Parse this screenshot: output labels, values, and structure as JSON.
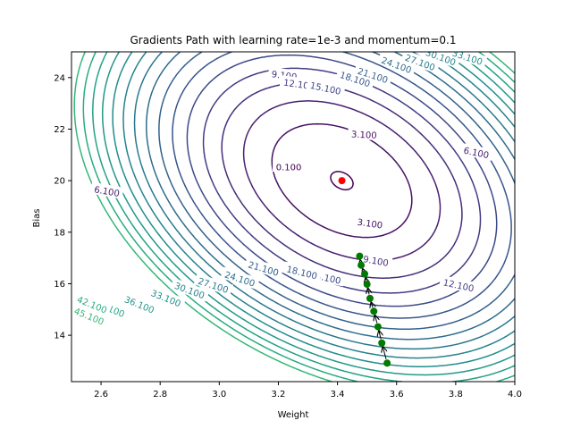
{
  "chart_data": {
    "type": "contour",
    "title": "Gradients Path with learning rate=1e-3 and momentum=0.1",
    "xlabel": "Weight",
    "ylabel": "Bias",
    "xlim": [
      2.5,
      4.0
    ],
    "ylim": [
      12.2,
      25.0
    ],
    "xticks": [
      2.6,
      2.8,
      3.0,
      3.2,
      3.4,
      3.6,
      3.8,
      4.0
    ],
    "yticks": [
      14,
      16,
      18,
      20,
      22,
      24
    ],
    "xtick_labels": [
      "2.6",
      "2.8",
      "3.0",
      "3.2",
      "3.4",
      "3.6",
      "3.8",
      "4.0"
    ],
    "ytick_labels": [
      "14",
      "16",
      "18",
      "20",
      "22",
      "24"
    ],
    "contour_levels": [
      0.1,
      3.1,
      6.1,
      9.1,
      12.1,
      15.1,
      18.1,
      21.1,
      24.1,
      27.1,
      30.1,
      33.1,
      36.1,
      39.1,
      42.1,
      45.1
    ],
    "contour_labels": [
      {
        "text": "0.100",
        "x": 3.235,
        "y": 20.55,
        "level": 0.1,
        "angle": 0
      },
      {
        "text": "3.100",
        "x": 3.49,
        "y": 21.8,
        "level": 3.1,
        "angle": 3
      },
      {
        "text": "3.100",
        "x": 3.51,
        "y": 18.35,
        "level": 3.1,
        "angle": 8
      },
      {
        "text": "6.100",
        "x": 2.62,
        "y": 19.6,
        "level": 6.1,
        "angle": 10
      },
      {
        "text": "6.100",
        "x": 3.87,
        "y": 21.1,
        "level": 6.1,
        "angle": 12
      },
      {
        "text": "9.100",
        "x": 3.22,
        "y": 24.1,
        "level": 9.1,
        "angle": 7
      },
      {
        "text": "9.100",
        "x": 3.53,
        "y": 16.9,
        "level": 9.1,
        "angle": 10
      },
      {
        "text": "12.100",
        "x": 3.27,
        "y": 23.75,
        "level": 12.1,
        "angle": 8
      },
      {
        "text": "12.100",
        "x": 3.81,
        "y": 15.95,
        "level": 12.1,
        "angle": 12
      },
      {
        "text": "15.100",
        "x": 3.36,
        "y": 23.6,
        "level": 15.1,
        "angle": 12
      },
      {
        "text": "15.100",
        "x": 3.36,
        "y": 16.25,
        "level": 15.1,
        "angle": 12
      },
      {
        "text": "18.100",
        "x": 3.46,
        "y": 23.95,
        "level": 18.1,
        "angle": 18
      },
      {
        "text": "18.100",
        "x": 3.28,
        "y": 16.45,
        "level": 18.1,
        "angle": 14
      },
      {
        "text": "21.100",
        "x": 3.52,
        "y": 24.1,
        "level": 21.1,
        "angle": 18
      },
      {
        "text": "21.100",
        "x": 3.15,
        "y": 16.6,
        "level": 21.1,
        "angle": 16
      },
      {
        "text": "24.100",
        "x": 3.6,
        "y": 24.5,
        "level": 24.1,
        "angle": 20
      },
      {
        "text": "24.100",
        "x": 3.07,
        "y": 16.2,
        "level": 24.1,
        "angle": 18
      },
      {
        "text": "27.100",
        "x": 3.68,
        "y": 24.6,
        "level": 27.1,
        "angle": 20
      },
      {
        "text": "27.100",
        "x": 2.98,
        "y": 15.95,
        "level": 27.1,
        "angle": 18
      },
      {
        "text": "30.100",
        "x": 3.75,
        "y": 24.8,
        "level": 30.1,
        "angle": 20
      },
      {
        "text": "30.100",
        "x": 2.9,
        "y": 15.75,
        "level": 30.1,
        "angle": 20
      },
      {
        "text": "33.100",
        "x": 3.84,
        "y": 24.8,
        "level": 33.1,
        "angle": 18
      },
      {
        "text": "33.100",
        "x": 2.82,
        "y": 15.45,
        "level": 33.1,
        "angle": 22
      },
      {
        "text": "36.100",
        "x": 2.73,
        "y": 15.2,
        "level": 36.1,
        "angle": 22
      },
      {
        "text": "39.100",
        "x": 2.63,
        "y": 15.05,
        "level": 39.1,
        "angle": 22
      },
      {
        "text": "42.100",
        "x": 2.57,
        "y": 15.2,
        "level": 42.1,
        "angle": 22
      },
      {
        "text": "45.100",
        "x": 2.56,
        "y": 14.75,
        "level": 45.1,
        "angle": 22
      }
    ],
    "minimum_point": {
      "x": 3.415,
      "y": 20.0,
      "color": "#ff0000"
    },
    "gradient_path": [
      {
        "x": 3.568,
        "y": 12.92
      },
      {
        "x": 3.55,
        "y": 13.7
      },
      {
        "x": 3.537,
        "y": 14.33
      },
      {
        "x": 3.523,
        "y": 14.93
      },
      {
        "x": 3.51,
        "y": 15.43
      },
      {
        "x": 3.5,
        "y": 15.98
      },
      {
        "x": 3.492,
        "y": 16.38
      },
      {
        "x": 3.48,
        "y": 16.72
      },
      {
        "x": 3.475,
        "y": 17.07
      }
    ],
    "path_color": "#007a00",
    "arrow_color": "#000000",
    "colors": {
      "low": "#440154",
      "mid": "#2b7f8e",
      "high": "#1fa187"
    }
  }
}
